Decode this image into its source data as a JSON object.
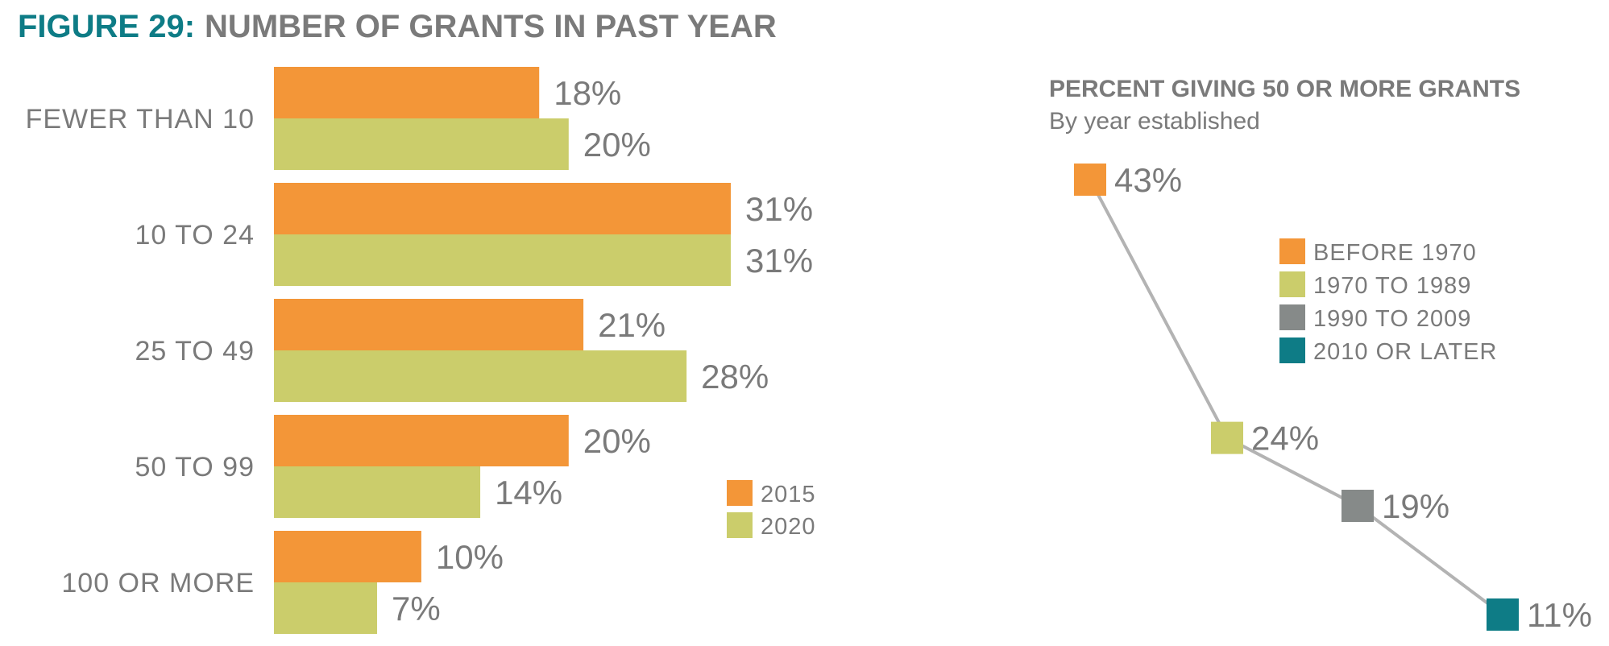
{
  "figure": {
    "label": "FIGURE 29:",
    "title": "NUMBER OF GRANTS IN PAST YEAR",
    "label_color": "#0e7c86",
    "title_color": "#7a7a7a"
  },
  "chart_data": [
    {
      "type": "bar",
      "orientation": "horizontal",
      "categories": [
        "FEWER THAN 10",
        "10 TO 24",
        "25 TO 49",
        "50 TO 99",
        "100 OR MORE"
      ],
      "series": [
        {
          "name": "2015",
          "color": "#f39638",
          "values": [
            18,
            31,
            21,
            20,
            10
          ],
          "labels": [
            "18%",
            "31%",
            "21%",
            "20%",
            "10%"
          ]
        },
        {
          "name": "2020",
          "color": "#cbcd6b",
          "values": [
            20,
            31,
            28,
            14,
            7
          ],
          "labels": [
            "20%",
            "31%",
            "28%",
            "14%",
            "7%"
          ]
        }
      ],
      "unit": "%",
      "xlim": [
        0,
        31
      ],
      "grid": false,
      "legend_position": "bottom-right"
    },
    {
      "type": "line",
      "title": "PERCENT GIVING 50 OR MORE GRANTS",
      "subtitle": "By year established",
      "categories": [
        "BEFORE 1970",
        "1970 TO 1989",
        "1990 TO 2009",
        "2010 OR LATER"
      ],
      "values": [
        43,
        24,
        19,
        11
      ],
      "labels": [
        "43%",
        "24%",
        "19%",
        "11%"
      ],
      "point_colors": [
        "#f39638",
        "#cbcd6b",
        "#868a89",
        "#0e7c86"
      ],
      "line_color": "#b3b3b3",
      "unit": "%",
      "ylim": [
        11,
        43
      ],
      "grid": false,
      "legend_position": "top-right"
    }
  ]
}
